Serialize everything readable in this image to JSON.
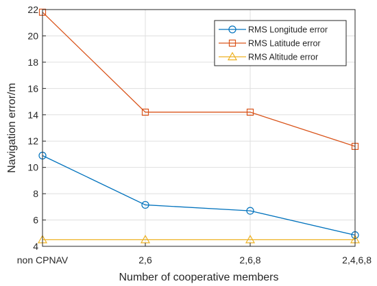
{
  "chart_data": {
    "type": "line",
    "title": "",
    "xlabel": "Number of cooperative  members",
    "ylabel": "Navigation  error/m",
    "categories": [
      "non CPNAV",
      "2,6",
      "2,6,8",
      "2,4,6,8"
    ],
    "ylim": [
      4,
      22
    ],
    "yticks": [
      4,
      6,
      8,
      10,
      12,
      14,
      16,
      18,
      20,
      22
    ],
    "grid": true,
    "legend_position": "top-right",
    "series": [
      {
        "name": "RMS Longitude error",
        "values": [
          10.9,
          7.15,
          6.7,
          4.85
        ],
        "color": "#0072BD",
        "marker": "circle"
      },
      {
        "name": "RMS Latitude error",
        "values": [
          21.8,
          14.2,
          14.2,
          11.6
        ],
        "color": "#D95319",
        "marker": "square"
      },
      {
        "name": "RMS Altitude error",
        "values": [
          4.5,
          4.5,
          4.5,
          4.5
        ],
        "color": "#EDB120",
        "marker": "triangle"
      }
    ]
  }
}
